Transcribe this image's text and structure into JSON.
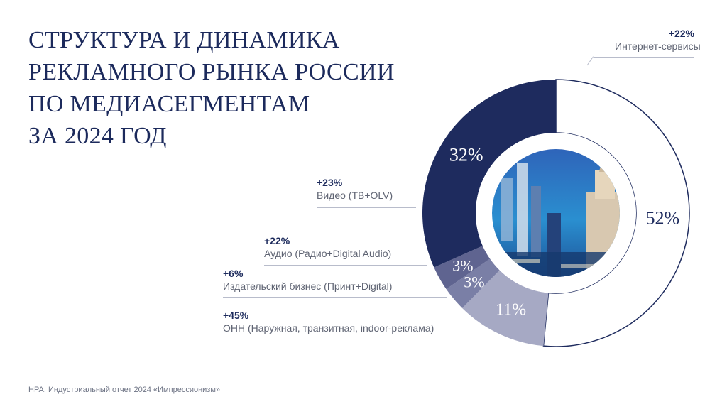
{
  "title_lines": [
    "СТРУКТУРА И ДИНАМИКА",
    "РЕКЛАМНОГО РЫНКА РОССИИ",
    "ПО МЕДИАСЕГМЕНТАМ",
    "ЗА 2024 ГОД"
  ],
  "footer": "НРА, Индустриальный отчет 2024 «Импрессионизм»",
  "colors": {
    "navy": "#1e2b5e",
    "audio": "#5f6490",
    "print": "#7a7fa6",
    "ooh": "#a6a9c4",
    "internet": "#ffffff",
    "rule": "#b8bccb"
  },
  "chart_data": {
    "type": "pie",
    "variant": "donut",
    "series": [
      {
        "name": "Интернет-сервисы",
        "value": 52,
        "label": "52%",
        "growth": "+22%",
        "color": "#ffffff"
      },
      {
        "name": "ОНН (Наружная, транзитная, indoor-реклама)",
        "value": 11,
        "label": "11%",
        "growth": "+45%",
        "color": "#a6a9c4"
      },
      {
        "name": "Издательский бизнес (Принт+Digital)",
        "value": 3,
        "label": "3%",
        "growth": "+6%",
        "color": "#7a7fa6"
      },
      {
        "name": "Аудио (Радио+Digital Audio)",
        "value": 3,
        "label": "3%",
        "growth": "+22%",
        "color": "#5f6490"
      },
      {
        "name": "Видео (ТВ+OLV)",
        "value": 32,
        "label": "32%",
        "growth": "+23%",
        "color": "#1e2b5e"
      }
    ],
    "center_image": "impressionist-cityscape-painting"
  }
}
